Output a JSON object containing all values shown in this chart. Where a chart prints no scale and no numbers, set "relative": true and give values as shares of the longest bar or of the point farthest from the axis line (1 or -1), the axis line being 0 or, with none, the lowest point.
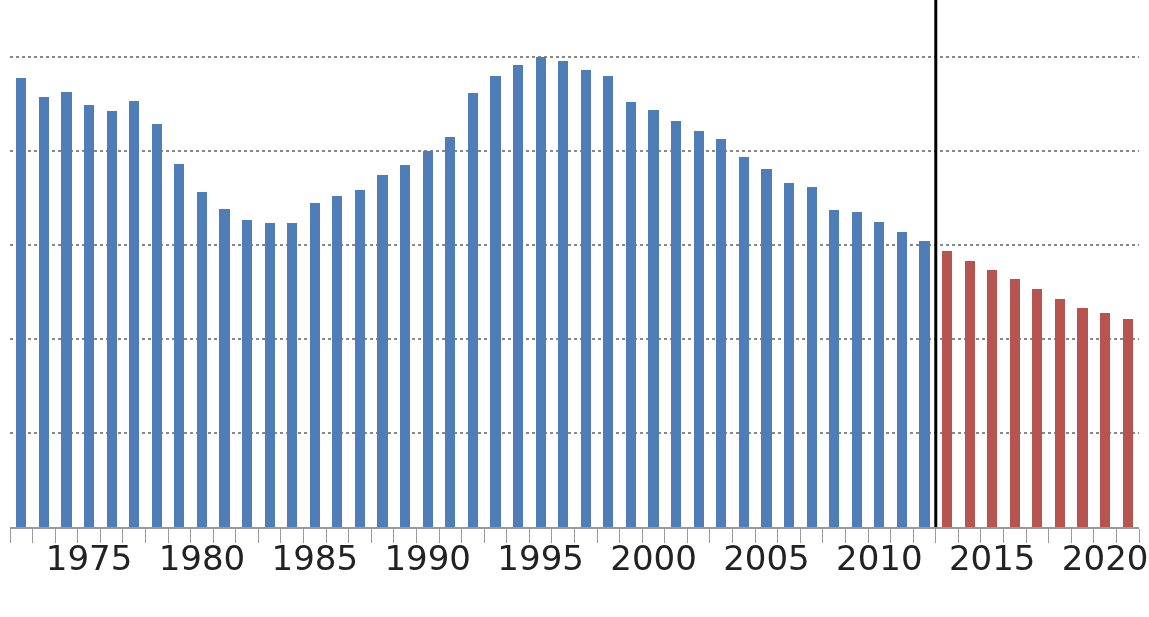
{
  "chart_data": {
    "type": "bar",
    "relative": true,
    "grid": "y",
    "tick_labels": "x",
    "categories": [
      null,
      null,
      null,
      "1975",
      null,
      null,
      null,
      null,
      "1980",
      null,
      null,
      null,
      null,
      "1985",
      null,
      null,
      null,
      null,
      "1990",
      null,
      null,
      null,
      null,
      "1995",
      null,
      null,
      null,
      null,
      "2000",
      null,
      null,
      null,
      null,
      "2005",
      null,
      null,
      null,
      null,
      "2010",
      null,
      null,
      null,
      null,
      "2015",
      null,
      null,
      null,
      null,
      "2020",
      null
    ],
    "series": [
      {
        "colors": [
          "#4f7db8",
          "#4f7db8",
          "#4f7db8",
          "#4f7db8",
          "#4f7db8",
          "#4f7db8",
          "#4f7db8",
          "#4f7db8",
          "#4f7db8",
          "#4f7db8",
          "#4f7db8",
          "#4f7db8",
          "#4f7db8",
          "#4f7db8",
          "#4f7db8",
          "#4f7db8",
          "#4f7db8",
          "#4f7db8",
          "#4f7db8",
          "#4f7db8",
          "#4f7db8",
          "#4f7db8",
          "#4f7db8",
          "#4f7db8",
          "#4f7db8",
          "#4f7db8",
          "#4f7db8",
          "#4f7db8",
          "#4f7db8",
          "#4f7db8",
          "#4f7db8",
          "#4f7db8",
          "#4f7db8",
          "#4f7db8",
          "#4f7db8",
          "#4f7db8",
          "#4f7db8",
          "#4f7db8",
          "#4f7db8",
          "#4f7db8",
          "#4f7db8",
          "#b85450",
          "#b85450",
          "#b85450",
          "#b85450",
          "#b85450",
          "#b85450",
          "#b85450",
          "#b85450",
          "#b85450"
        ],
        "values": [
          0.956,
          0.914,
          0.925,
          0.898,
          0.885,
          0.907,
          0.858,
          0.772,
          0.712,
          0.677,
          0.653,
          0.646,
          0.646,
          0.69,
          0.704,
          0.717,
          0.748,
          0.77,
          0.799,
          0.83,
          0.923,
          0.96,
          0.982,
          1.0,
          0.991,
          0.973,
          0.96,
          0.905,
          0.887,
          0.863,
          0.843,
          0.825,
          0.788,
          0.761,
          0.732,
          0.723,
          0.675,
          0.67,
          0.65,
          0.628,
          0.608,
          0.588,
          0.566,
          0.546,
          0.527,
          0.507,
          0.485,
          0.465,
          0.456,
          0.442
        ]
      }
    ]
  }
}
